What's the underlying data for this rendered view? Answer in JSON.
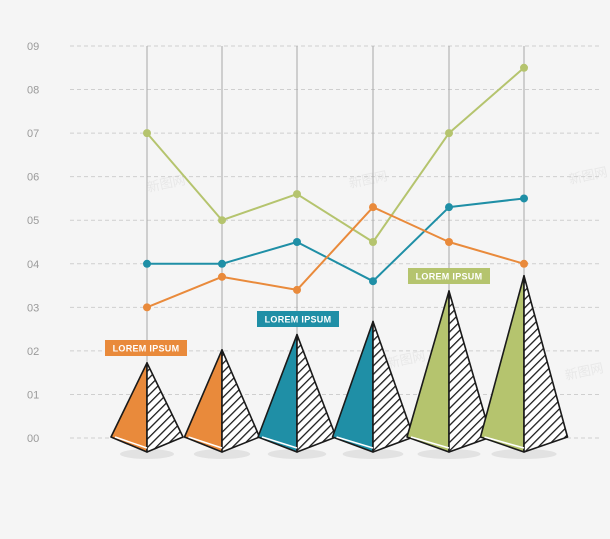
{
  "chart_data": {
    "type": "line",
    "x": [
      1,
      2,
      3,
      4,
      5,
      6
    ],
    "ylim": [
      0,
      9
    ],
    "y_ticks": [
      "00",
      "01",
      "02",
      "03",
      "04",
      "05",
      "06",
      "07",
      "08",
      "09"
    ],
    "grid": true,
    "series": [
      {
        "color": "#b5c46e",
        "values": [
          7.0,
          5.0,
          5.6,
          4.5,
          7.0,
          8.5
        ]
      },
      {
        "color": "#1f8fa6",
        "values": [
          4.0,
          4.0,
          4.5,
          3.6,
          5.3,
          5.5
        ]
      },
      {
        "color": "#e98a3b",
        "values": [
          3.0,
          3.7,
          3.4,
          5.3,
          4.5,
          4.0
        ]
      }
    ],
    "pyramids": [
      {
        "value": 1.45,
        "color": "#e98a3b"
      },
      {
        "value": 1.75,
        "color": "#e98a3b"
      },
      {
        "value": 2.1,
        "color": "#1f8fa6"
      },
      {
        "value": 2.4,
        "color": "#1f8fa6"
      },
      {
        "value": 3.1,
        "color": "#b5c46e"
      },
      {
        "value": 3.45,
        "color": "#b5c46e"
      }
    ],
    "labels": [
      {
        "text": "Lorem Ipsum",
        "color": "#e98a3b"
      },
      {
        "text": "Lorem Ipsum",
        "color": "#1f8fa6"
      },
      {
        "text": "Lorem Ipsum",
        "color": "#b5c46e"
      }
    ]
  },
  "watermark": "新图网"
}
